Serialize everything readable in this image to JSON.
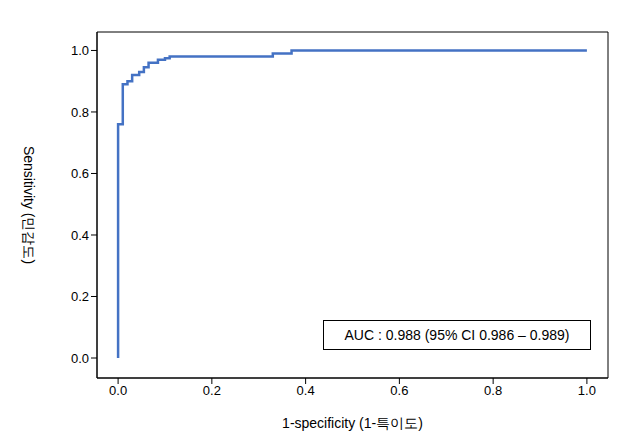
{
  "chart_data": {
    "type": "line",
    "x_label": "1-specificity (1-특이도)",
    "y_label": "Sensitivity (민감도)",
    "annotation": "AUC : 0.988 (95% CI 0.986 – 0.989)",
    "x": [
      0,
      0,
      0.01,
      0.01,
      0.02,
      0.02,
      0.03,
      0.03,
      0.045,
      0.045,
      0.055,
      0.055,
      0.065,
      0.065,
      0.085,
      0.085,
      0.1,
      0.1,
      0.11,
      0.11,
      0.33,
      0.33,
      0.37,
      0.37,
      1.0
    ],
    "values": [
      0,
      0.76,
      0.76,
      0.89,
      0.89,
      0.9,
      0.9,
      0.92,
      0.92,
      0.93,
      0.93,
      0.945,
      0.945,
      0.96,
      0.96,
      0.97,
      0.97,
      0.975,
      0.975,
      0.98,
      0.98,
      0.99,
      0.99,
      1.0,
      1.0
    ],
    "color": "#4472c4",
    "xlim": [
      -0.045,
      1.045
    ],
    "ylim": [
      -0.065,
      1.06
    ],
    "xticks": [
      {
        "value": 0,
        "label": "0.0"
      },
      0.2,
      0.4,
      0.6,
      0.8,
      {
        "value": 1,
        "label": "1.0"
      }
    ],
    "yticks": [
      {
        "value": 0,
        "label": "0.0"
      },
      0.2,
      0.4,
      0.6,
      0.8,
      {
        "value": 1,
        "label": "1.0"
      }
    ],
    "grid": false
  }
}
